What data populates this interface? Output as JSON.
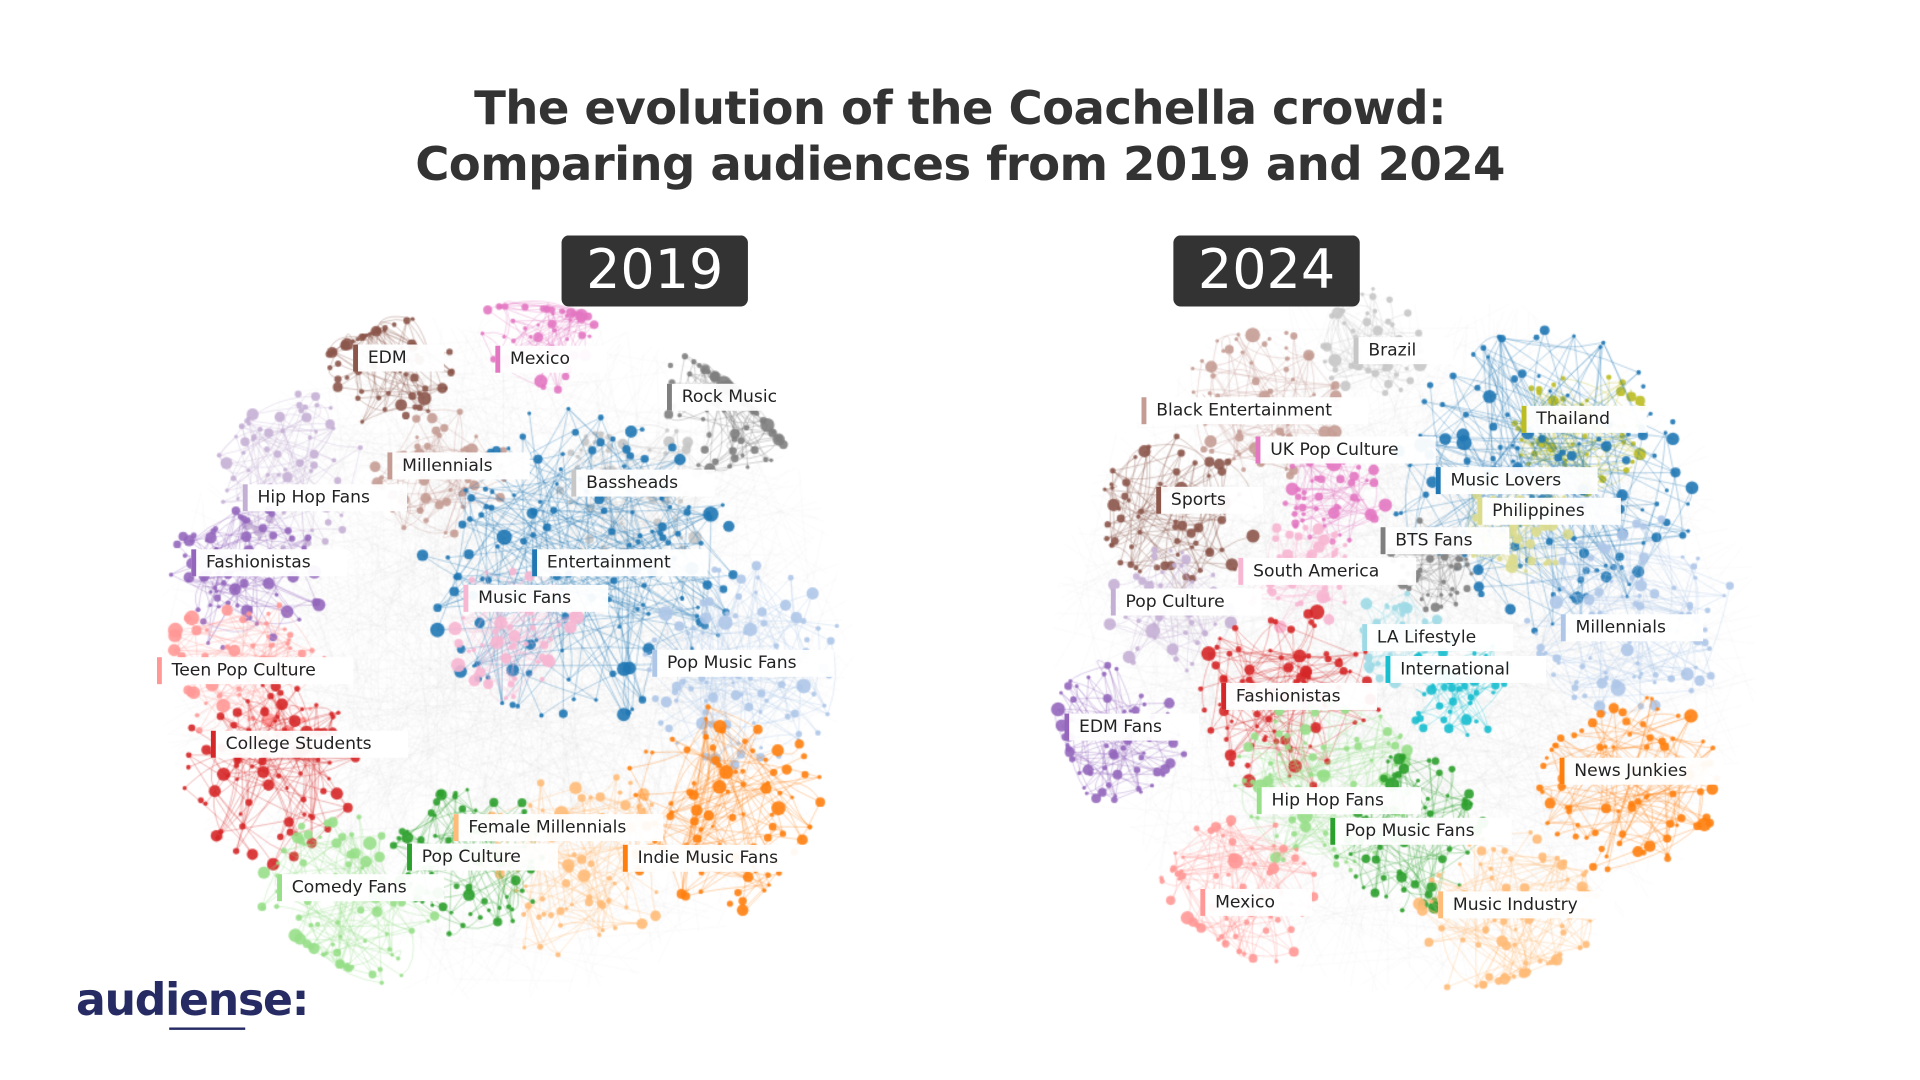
{
  "title_line1": "The evolution of the Coachella crowd:",
  "title_line2": "Comparing audiences from 2019 and 2024",
  "logo": "audiense:",
  "panels": [
    {
      "year": "2019",
      "clusters": [
        {
          "label": "EDM",
          "color": "#8c564b"
        },
        {
          "label": "Mexico",
          "color": "#e377c2"
        },
        {
          "label": "Rock Music",
          "color": "#7f7f7f"
        },
        {
          "label": "Millennials",
          "color": "#c49c94"
        },
        {
          "label": "Bassheads",
          "color": "#c7c7c7"
        },
        {
          "label": "Hip Hop Fans",
          "color": "#c5b0d5"
        },
        {
          "label": "Fashionistas",
          "color": "#9467bd"
        },
        {
          "label": "Entertainment",
          "color": "#1f77b4"
        },
        {
          "label": "Music Fans",
          "color": "#f7b6d2"
        },
        {
          "label": "Pop Music Fans",
          "color": "#aec7e8"
        },
        {
          "label": "Teen Pop Culture",
          "color": "#ff9896"
        },
        {
          "label": "College Students",
          "color": "#d62728"
        },
        {
          "label": "Female Millennials",
          "color": "#ffbb78"
        },
        {
          "label": "Pop Culture",
          "color": "#2ca02c"
        },
        {
          "label": "Indie Music Fans",
          "color": "#ff7f0e"
        },
        {
          "label": "Comedy Fans",
          "color": "#98df8a"
        }
      ]
    },
    {
      "year": "2024",
      "clusters": [
        {
          "label": "Brazil",
          "color": "#c7c7c7"
        },
        {
          "label": "Black Entertainment",
          "color": "#c49c94"
        },
        {
          "label": "Thailand",
          "color": "#bcbd22"
        },
        {
          "label": "UK Pop Culture",
          "color": "#e377c2"
        },
        {
          "label": "Music Lovers",
          "color": "#1f77b4"
        },
        {
          "label": "Sports",
          "color": "#8c564b"
        },
        {
          "label": "Philippines",
          "color": "#dbdb8d"
        },
        {
          "label": "BTS Fans",
          "color": "#7f7f7f"
        },
        {
          "label": "South America",
          "color": "#f7b6d2"
        },
        {
          "label": "Pop Culture",
          "color": "#c5b0d5"
        },
        {
          "label": "LA Lifestyle",
          "color": "#9edae5"
        },
        {
          "label": "Millennials",
          "color": "#aec7e8"
        },
        {
          "label": "International",
          "color": "#17becf"
        },
        {
          "label": "Fashionistas",
          "color": "#d62728"
        },
        {
          "label": "EDM Fans",
          "color": "#9467bd"
        },
        {
          "label": "News Junkies",
          "color": "#ff7f0e"
        },
        {
          "label": "Hip Hop Fans",
          "color": "#98df8a"
        },
        {
          "label": "Pop Music Fans",
          "color": "#2ca02c"
        },
        {
          "label": "Mexico",
          "color": "#ff9896"
        },
        {
          "label": "Music Industry",
          "color": "#ffbb78"
        }
      ]
    }
  ]
}
